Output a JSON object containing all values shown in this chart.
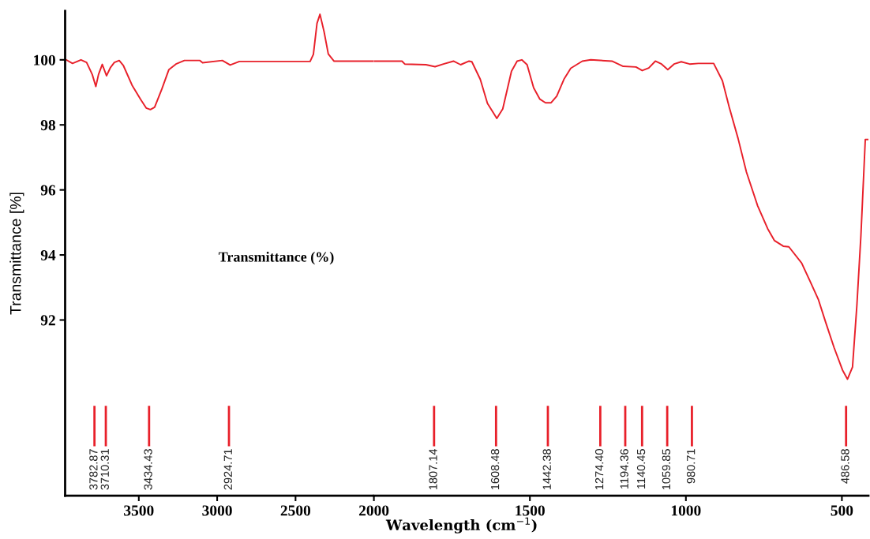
{
  "chart_data": [
    {
      "type": "line",
      "ylabel": "Transmittance [%]",
      "xlim": [
        3970,
        2000
      ],
      "xticks": [
        3500,
        3000,
        2500,
        2000
      ],
      "ylim": [
        86.6,
        101.5
      ],
      "yticks": [
        92,
        94,
        96,
        98,
        100
      ],
      "grid": false,
      "series": [
        {
          "color": "#e8202a",
          "x": [
            3970,
            3923,
            3869,
            3833,
            3797,
            3774,
            3757,
            3733,
            3706,
            3680,
            3656,
            3625,
            3598,
            3543,
            3489,
            3453,
            3426,
            3399,
            3353,
            3308,
            3263,
            3209,
            3110,
            3093,
            2967,
            2917,
            2858,
            2407,
            2386,
            2363,
            2344,
            2318,
            2291,
            2255,
            2000
          ],
          "values": [
            100.02,
            99.89,
            100.0,
            99.92,
            99.55,
            99.18,
            99.55,
            99.86,
            99.51,
            99.77,
            99.92,
            99.98,
            99.82,
            99.22,
            98.79,
            98.52,
            98.47,
            98.54,
            99.1,
            99.7,
            99.87,
            99.98,
            99.98,
            99.91,
            99.98,
            99.84,
            99.95,
            99.95,
            100.17,
            101.12,
            101.4,
            100.87,
            100.18,
            99.96,
            99.96
          ]
        }
      ],
      "ref_lines": [
        {
          "axis": "x",
          "value": 3782.87,
          "label": "3782.87"
        },
        {
          "axis": "x",
          "value": 3710.31,
          "label": "3710.31"
        },
        {
          "axis": "x",
          "value": 3434.43,
          "label": "3434.43"
        },
        {
          "axis": "x",
          "value": 2924.71,
          "label": "2924.71"
        }
      ],
      "annotations": [
        "Transmittance (%)"
      ]
    },
    {
      "type": "line",
      "xlabel": "Wavelength (cm$^{−1}$)",
      "tick_labels": "x",
      "xlim": [
        2000,
        415
      ],
      "xticks": [
        1500,
        1000,
        500
      ],
      "ylim": [
        86.6,
        101.5
      ],
      "grid": false,
      "series": [
        {
          "color": "#e8202a",
          "x": [
            2000,
            1910,
            1901,
            1833,
            1804,
            1777,
            1745,
            1722,
            1695,
            1686,
            1659,
            1636,
            1606,
            1587,
            1559,
            1541,
            1526,
            1509,
            1488,
            1468,
            1450,
            1432,
            1414,
            1391,
            1369,
            1332,
            1305,
            1237,
            1201,
            1160,
            1140,
            1119,
            1098,
            1078,
            1058,
            1038,
            1015,
            988,
            960,
            911,
            883,
            861,
            833,
            806,
            770,
            738,
            716,
            688,
            670,
            629,
            602,
            575,
            552,
            525,
            498,
            482,
            466,
            452,
            439,
            425,
            417
          ],
          "values": [
            99.96,
            99.96,
            99.87,
            99.85,
            99.79,
            99.87,
            99.96,
            99.85,
            99.96,
            99.94,
            99.4,
            98.66,
            98.2,
            98.49,
            99.65,
            99.96,
            100.0,
            99.85,
            99.14,
            98.79,
            98.68,
            98.68,
            98.88,
            99.4,
            99.74,
            99.96,
            100.0,
            99.96,
            99.8,
            99.78,
            99.67,
            99.75,
            99.96,
            99.87,
            99.7,
            99.87,
            99.94,
            99.87,
            99.89,
            99.89,
            99.36,
            98.54,
            97.59,
            96.55,
            95.51,
            94.81,
            94.44,
            94.27,
            94.25,
            93.75,
            93.19,
            92.62,
            91.93,
            91.15,
            90.46,
            90.18,
            90.55,
            92.45,
            94.61,
            97.55,
            97.55
          ]
        }
      ],
      "ref_lines": [
        {
          "axis": "x",
          "value": 1807.14,
          "label": "1807.14"
        },
        {
          "axis": "x",
          "value": 1608.48,
          "label": "1608.48"
        },
        {
          "axis": "x",
          "value": 1442.38,
          "label": "1442.38"
        },
        {
          "axis": "x",
          "value": 1274.4,
          "label": "1274.40"
        },
        {
          "axis": "x",
          "value": 1194.36,
          "label": "1194.36"
        },
        {
          "axis": "x",
          "value": 1140.45,
          "label": "1140.45"
        },
        {
          "axis": "x",
          "value": 1059.85,
          "label": "1059.85"
        },
        {
          "axis": "x",
          "value": 980.71,
          "label": "980.71"
        },
        {
          "axis": "x",
          "value": 486.58,
          "label": "486.58"
        }
      ]
    }
  ]
}
